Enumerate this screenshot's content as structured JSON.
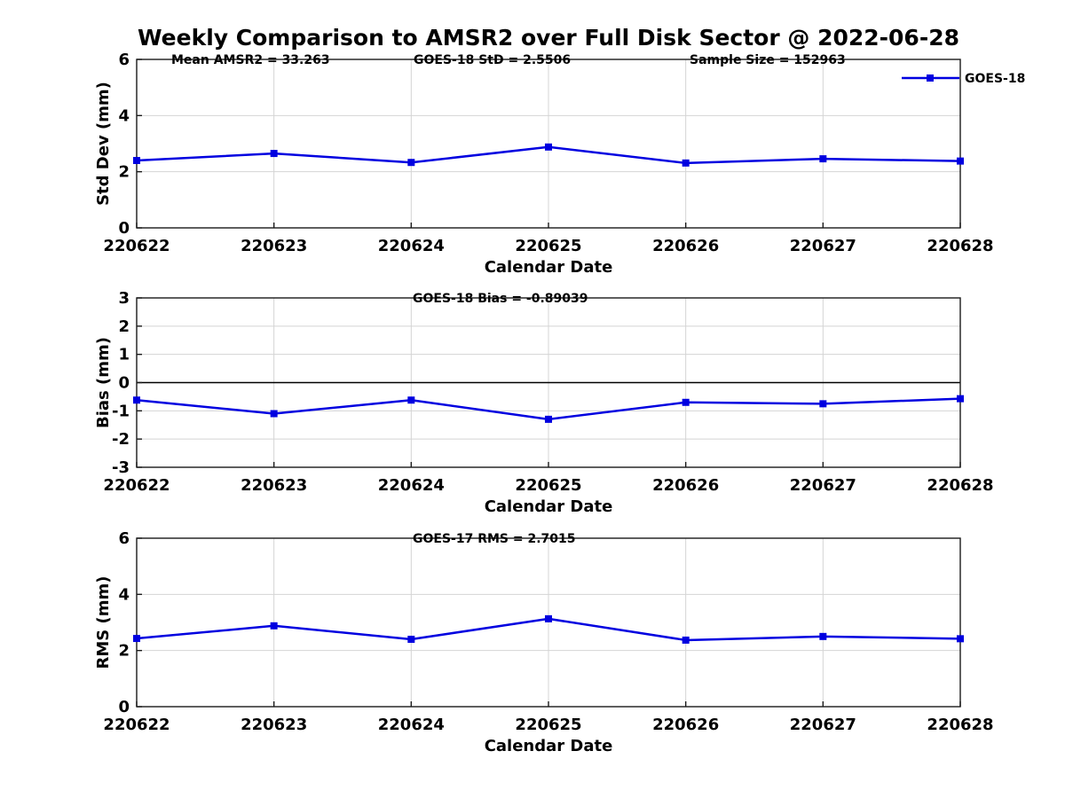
{
  "title": "Weekly Comparison to AMSR2 over Full Disk Sector @ 2022-06-28",
  "colors": {
    "series_line": "#0000E0",
    "grid": "#D4D4D4",
    "axis": "#1A1A1A",
    "zero_line": "#000000",
    "text": "#000000"
  },
  "chart_data": [
    {
      "type": "line",
      "id": "std-dev",
      "ylabel": "Std Dev (mm)",
      "xlabel": "Calendar Date",
      "ylim": [
        0,
        6
      ],
      "yticks": [
        0,
        2,
        4,
        6
      ],
      "grid": true,
      "zero_line": false,
      "categories": [
        "220622",
        "220623",
        "220624",
        "220625",
        "220626",
        "220627",
        "220628"
      ],
      "series": [
        {
          "name": "GOES-18",
          "values": [
            2.4,
            2.65,
            2.33,
            2.88,
            2.31,
            2.46,
            2.38
          ]
        }
      ],
      "annotations": [
        {
          "text": "Mean AMSR2 = 33.263",
          "x": 193
        },
        {
          "text": "GOES-18 StD = 2.5506",
          "x": 466
        },
        {
          "text": "Sample Size = 152963",
          "x": 777
        }
      ],
      "legend": {
        "show": true,
        "label": "GOES-18",
        "position": "outside-top-right"
      }
    },
    {
      "type": "line",
      "id": "bias",
      "ylabel": "Bias (mm)",
      "xlabel": "Calendar Date",
      "ylim": [
        -3,
        3
      ],
      "yticks": [
        -3,
        -2,
        -1,
        0,
        1,
        2,
        3
      ],
      "grid": true,
      "zero_line": true,
      "categories": [
        "220622",
        "220623",
        "220624",
        "220625",
        "220626",
        "220627",
        "220628"
      ],
      "series": [
        {
          "name": "GOES-18",
          "values": [
            -0.62,
            -1.1,
            -0.62,
            -1.3,
            -0.7,
            -0.75,
            -0.57
          ]
        }
      ],
      "annotations": [
        {
          "text": "GOES-18 Bias  = -0.89039",
          "x": 465
        }
      ],
      "legend": {
        "show": false
      }
    },
    {
      "type": "line",
      "id": "rms",
      "ylabel": "RMS (mm)",
      "xlabel": "Calendar Date",
      "ylim": [
        0,
        6
      ],
      "yticks": [
        0,
        2,
        4,
        6
      ],
      "grid": true,
      "zero_line": false,
      "categories": [
        "220622",
        "220623",
        "220624",
        "220625",
        "220626",
        "220627",
        "220628"
      ],
      "series": [
        {
          "name": "GOES-18",
          "values": [
            2.43,
            2.88,
            2.4,
            3.13,
            2.37,
            2.5,
            2.42
          ]
        }
      ],
      "annotations": [
        {
          "text": "GOES-17 RMS = 2.7015",
          "x": 465
        }
      ],
      "legend": {
        "show": false
      }
    }
  ]
}
